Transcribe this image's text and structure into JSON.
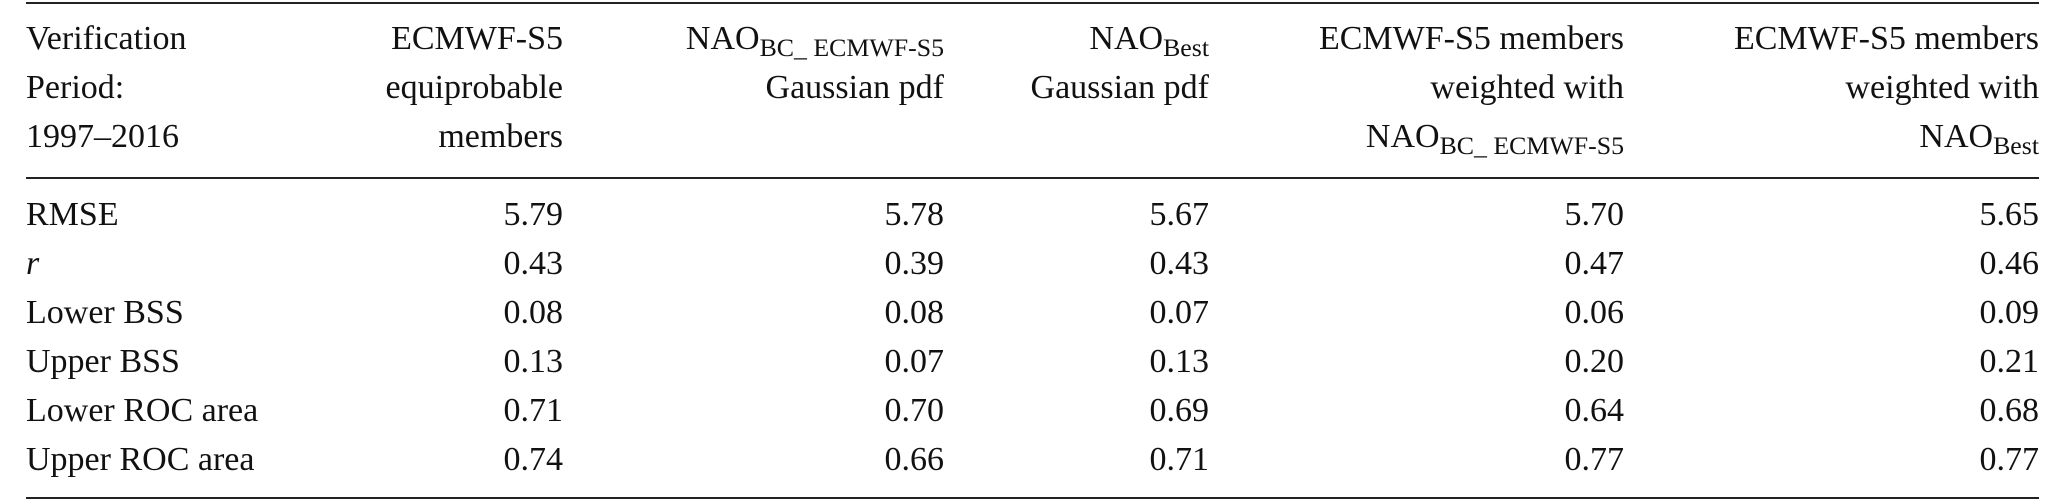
{
  "table": {
    "header": [
      {
        "lines": [
          "Verification",
          "Period:",
          "1997–2016"
        ]
      },
      {
        "lines": [
          "ECMWF-S5",
          "equiprobable",
          "members"
        ]
      },
      {
        "lines": [
          {
            "base": "NAO",
            "sub": "BC_ ECMWF-S5"
          },
          "Gaussian pdf"
        ]
      },
      {
        "lines": [
          {
            "base": "NAO",
            "sub": "Best"
          },
          "Gaussian pdf"
        ]
      },
      {
        "lines": [
          "ECMWF-S5 members",
          "weighted with",
          {
            "base": "NAO",
            "sub": "BC_ ECMWF-S5"
          }
        ]
      },
      {
        "lines": [
          "ECMWF-S5 members",
          "weighted with",
          {
            "base": "NAO",
            "sub": "Best"
          }
        ]
      }
    ],
    "rows": [
      [
        "RMSE",
        "5.79",
        "5.78",
        "5.67",
        "5.70",
        "5.65"
      ],
      [
        "r",
        "0.43",
        "0.39",
        "0.43",
        "0.47",
        "0.46"
      ],
      [
        "Lower BSS",
        "0.08",
        "0.08",
        "0.07",
        "0.06",
        "0.09"
      ],
      [
        "Upper BSS",
        "0.13",
        "0.07",
        "0.13",
        "0.20",
        "0.21"
      ],
      [
        "Lower ROC area",
        "0.71",
        "0.70",
        "0.69",
        "0.64",
        "0.68"
      ],
      [
        "Upper ROC area",
        "0.74",
        "0.66",
        "0.71",
        "0.77",
        "0.77"
      ]
    ]
  }
}
